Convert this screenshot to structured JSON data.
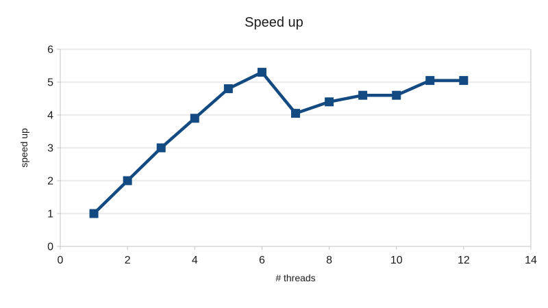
{
  "chart_data": {
    "type": "line",
    "title": "Speed up",
    "xlabel": "# threads",
    "ylabel": "speed up",
    "x": [
      1,
      2,
      3,
      4,
      5,
      6,
      7,
      8,
      9,
      10,
      11,
      12
    ],
    "series": [
      {
        "name": "speed up",
        "values": [
          1.0,
          2.0,
          3.0,
          3.9,
          4.8,
          5.3,
          4.05,
          4.4,
          4.6,
          4.6,
          5.05,
          5.05
        ]
      }
    ],
    "xlim": [
      0,
      14
    ],
    "ylim": [
      0,
      6
    ],
    "xticks": [
      0,
      2,
      4,
      6,
      8,
      10,
      12,
      14
    ],
    "yticks": [
      0,
      1,
      2,
      3,
      4,
      5,
      6
    ],
    "grid": "horizontal-only",
    "legend": "none",
    "marker": "square",
    "colors": {
      "series": "#134a81",
      "gridline": "#d9d9d9",
      "axis": "#c4c4c4",
      "text": "#1a1a1a",
      "background": "#ffffff"
    }
  }
}
